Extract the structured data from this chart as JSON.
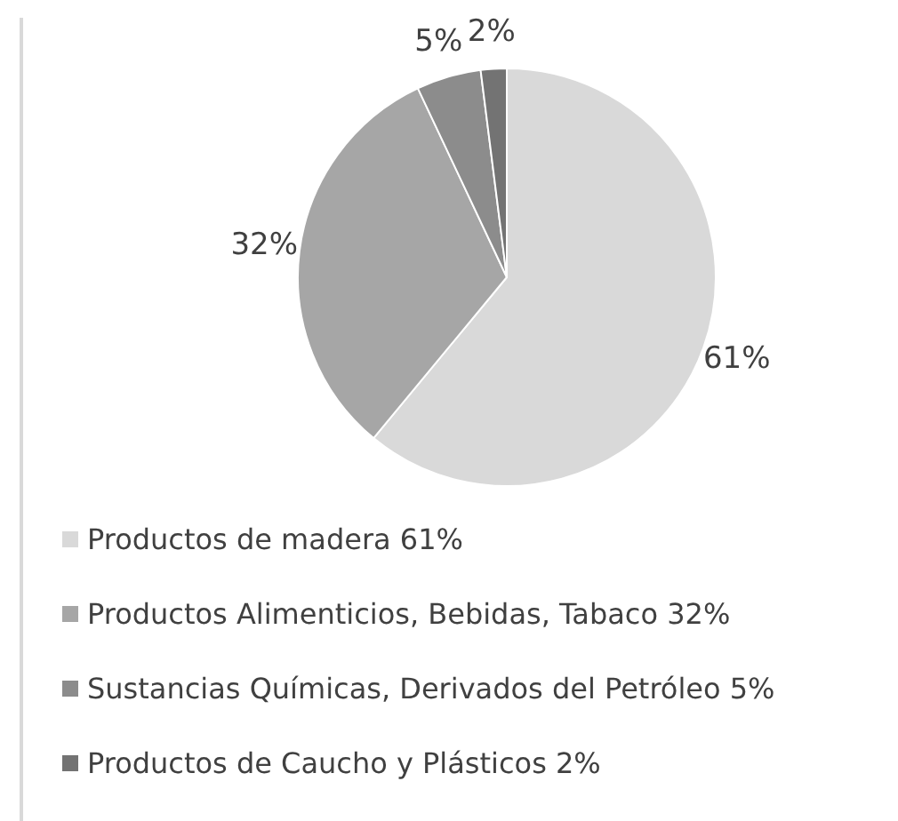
{
  "chart_data": {
    "type": "pie",
    "categories": [
      "Productos de madera 61%",
      "Productos Alimenticios, Bebidas, Tabaco 32%",
      "Sustancias Químicas, Derivados del Petróleo 5%",
      "Productos de Caucho y Plásticos 2%"
    ],
    "values": [
      61,
      32,
      5,
      2
    ],
    "value_labels": [
      "61%",
      "32%",
      "5%",
      "2%"
    ],
    "colors": [
      "#d9d9d9",
      "#a6a6a6",
      "#8c8c8c",
      "#737373"
    ],
    "legend": "bottom"
  }
}
